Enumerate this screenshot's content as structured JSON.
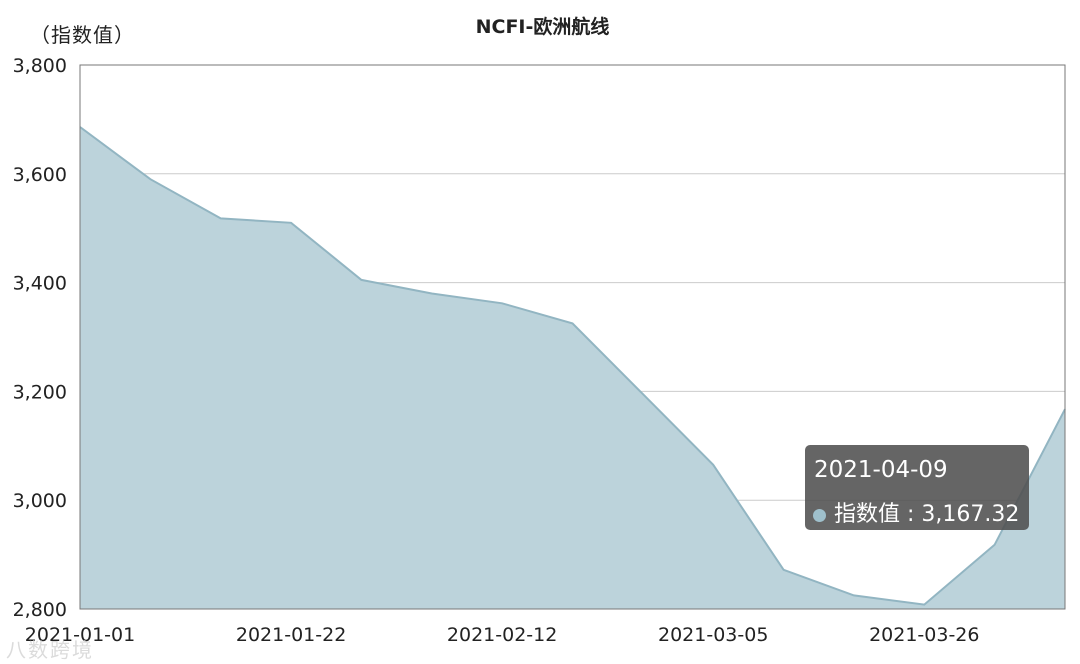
{
  "chart_data": {
    "type": "area",
    "title": "NCFI-欧洲航线",
    "ylabel": "（指数值）",
    "ylim": [
      2800,
      3800
    ],
    "yticks": [
      "3,800",
      "3,600",
      "3,400",
      "3,200",
      "3,000",
      "2,800"
    ],
    "ytick_values": [
      3800,
      3600,
      3400,
      3200,
      3000,
      2800
    ],
    "xtick_labels": [
      "2021-01-01",
      "2021-01-22",
      "2021-02-12",
      "2021-03-05",
      "2021-03-26"
    ],
    "x": [
      "2021-01-01",
      "2021-01-08",
      "2021-01-15",
      "2021-01-22",
      "2021-01-29",
      "2021-02-05",
      "2021-02-12",
      "2021-02-19",
      "2021-02-26",
      "2021-03-05",
      "2021-03-12",
      "2021-03-19",
      "2021-03-26",
      "2021-04-02",
      "2021-04-09"
    ],
    "series": [
      {
        "values": [
          3686,
          3590,
          3518,
          3510,
          3405,
          3380,
          3362,
          3325,
          3195,
          3065,
          2872,
          2825,
          2808,
          2918,
          3167.32
        ]
      }
    ],
    "grid": true,
    "colors": {
      "fill": "#bcd3db",
      "line": "#92b5c2",
      "grid": "#cccccc",
      "axis": "#444444"
    }
  },
  "tooltip": {
    "date": "2021-04-09",
    "label": "指数值 : 3,167.32"
  },
  "watermark": "八数跨境"
}
